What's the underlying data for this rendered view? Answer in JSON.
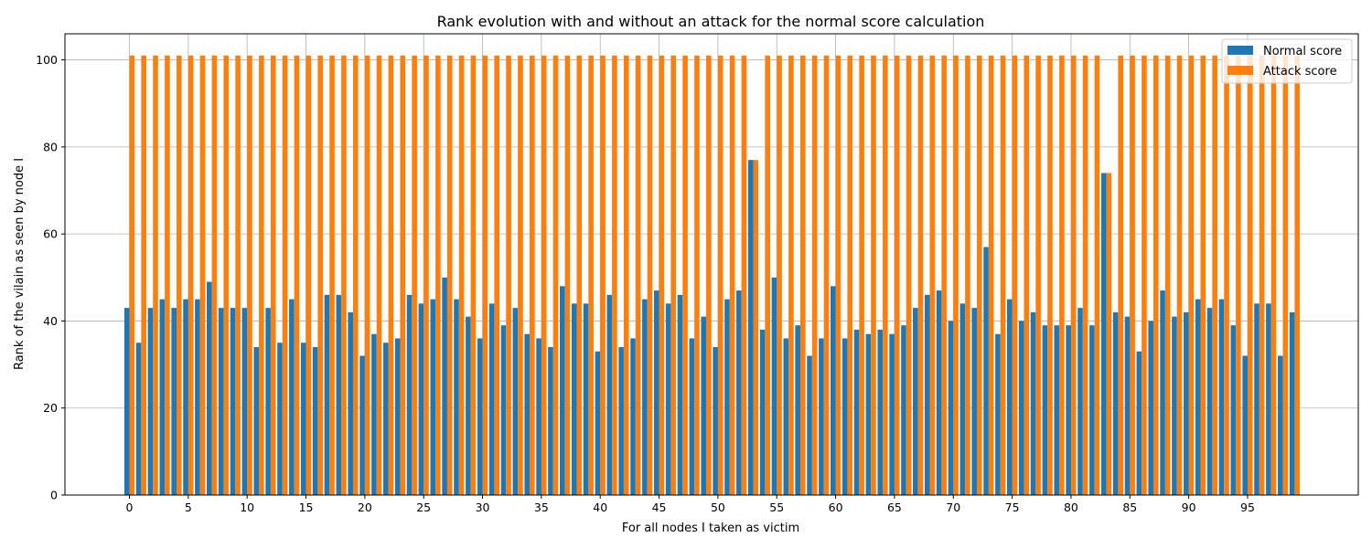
{
  "chart_data": {
    "type": "bar",
    "title": "Rank evolution with and without an attack for the normal score calculation",
    "xlabel": "For all nodes I taken as victim",
    "ylabel": "Rank of the vilain as seen by node I",
    "x_ticks": [
      0,
      5,
      10,
      15,
      20,
      25,
      30,
      35,
      40,
      45,
      50,
      55,
      60,
      65,
      70,
      75,
      80,
      85,
      90,
      95
    ],
    "y_ticks": [
      0,
      20,
      40,
      60,
      80,
      100
    ],
    "ylim": [
      0,
      106
    ],
    "grid": true,
    "legend_position": "top-right",
    "series": [
      {
        "name": "Normal score",
        "color": "#1f77b4",
        "values": [
          43,
          35,
          43,
          45,
          43,
          45,
          45,
          49,
          43,
          43,
          43,
          34,
          43,
          35,
          45,
          35,
          34,
          46,
          46,
          42,
          32,
          37,
          35,
          36,
          46,
          44,
          45,
          50,
          45,
          41,
          36,
          44,
          39,
          43,
          37,
          36,
          34,
          48,
          44,
          44,
          33,
          46,
          34,
          36,
          45,
          47,
          44,
          46,
          36,
          41,
          34,
          45,
          47,
          77,
          38,
          50,
          36,
          39,
          32,
          36,
          48,
          36,
          38,
          37,
          38,
          37,
          39,
          43,
          46,
          47,
          40,
          44,
          43,
          57,
          37,
          45,
          40,
          42,
          39,
          39,
          39,
          43,
          39,
          74,
          42,
          41,
          33,
          40,
          47,
          41,
          42,
          45,
          43,
          45,
          39,
          32,
          44,
          44,
          32,
          42
        ]
      },
      {
        "name": "Attack score",
        "color": "#ff7f0e",
        "values": [
          101,
          101,
          101,
          101,
          101,
          101,
          101,
          101,
          101,
          101,
          101,
          101,
          101,
          101,
          101,
          101,
          101,
          101,
          101,
          101,
          101,
          101,
          101,
          101,
          101,
          101,
          101,
          101,
          101,
          101,
          101,
          101,
          101,
          101,
          101,
          101,
          101,
          101,
          101,
          101,
          101,
          101,
          101,
          101,
          101,
          101,
          101,
          101,
          101,
          101,
          101,
          101,
          101,
          77,
          101,
          101,
          101,
          101,
          101,
          101,
          101,
          101,
          101,
          101,
          101,
          101,
          101,
          101,
          101,
          101,
          101,
          101,
          101,
          101,
          101,
          101,
          101,
          101,
          101,
          101,
          101,
          101,
          101,
          74,
          101,
          101,
          101,
          101,
          101,
          101,
          101,
          101,
          101,
          101,
          101,
          101,
          101,
          101,
          101,
          101
        ]
      }
    ]
  }
}
